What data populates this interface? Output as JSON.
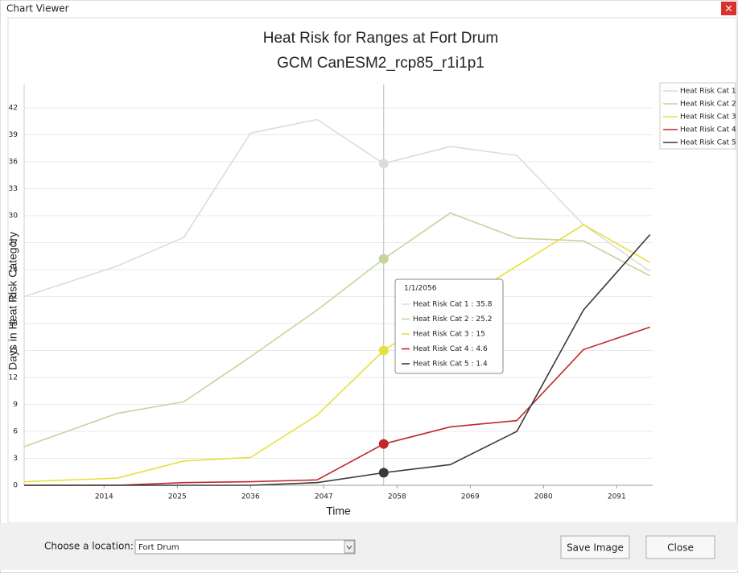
{
  "window_title": "Chart Viewer",
  "chart_data": {
    "type": "line",
    "title": "Heat Risk for Ranges at Fort Drum",
    "subtitle": "GCM CanESM2_rcp85_r1i1p1",
    "x_label": "Time",
    "y_label": "Days in Heat Risk Category",
    "x": [
      2002,
      2016,
      2026,
      2036,
      2046,
      2056,
      2066,
      2076,
      2086,
      2096
    ],
    "series": [
      {
        "name": "Heat Risk Cat 1",
        "color": "#dcdcdc",
        "values": [
          21,
          24.4,
          27.6,
          39.2,
          40.7,
          35.8,
          37.7,
          36.7,
          29,
          23.8
        ]
      },
      {
        "name": "Heat Risk Cat 2",
        "color": "#c3d69b",
        "values": [
          4.3,
          8.0,
          9.3,
          14.3,
          19.5,
          25.2,
          30.3,
          27.5,
          27.2,
          23.3
        ]
      },
      {
        "name": "Heat Risk Cat 3",
        "color": "#e6e03c",
        "values": [
          0.4,
          0.8,
          2.7,
          3.1,
          7.8,
          15,
          19.8,
          24.4,
          29,
          24.8
        ]
      },
      {
        "name": "Heat Risk Cat 4",
        "color": "#c0282d",
        "values": [
          0,
          0,
          0.3,
          0.4,
          0.6,
          4.6,
          6.5,
          7.2,
          15.1,
          17.6
        ]
      },
      {
        "name": "Heat Risk Cat 5",
        "color": "#3a3a3a",
        "values": [
          0,
          0,
          0,
          0,
          0.3,
          1.4,
          2.3,
          6,
          19.5,
          27.9
        ]
      }
    ],
    "xlim": [
      2002,
      2096.4
    ],
    "xticks": [
      2014,
      2025,
      2036,
      2047,
      2058,
      2069,
      2080,
      2091
    ],
    "ylim": [
      0,
      44.6
    ],
    "yticks": [
      0,
      3,
      6,
      9,
      12,
      15,
      18,
      21,
      24,
      27,
      30,
      33,
      36,
      39,
      42
    ],
    "grid": true,
    "legend": "right",
    "crosshair": 2056,
    "tooltip": {
      "title": "1/1/2056",
      "items": [
        "Heat Risk Cat 1 : 35.8",
        "Heat Risk Cat 2 : 25.2",
        "Heat Risk Cat 3 : 15",
        "Heat Risk Cat 4 : 4.6",
        "Heat Risk Cat 5 : 1.4"
      ]
    }
  },
  "controls": {
    "location_label": "Choose a location:",
    "location_value": "Fort Drum",
    "save_button": "Save Image",
    "close_button": "Close"
  }
}
